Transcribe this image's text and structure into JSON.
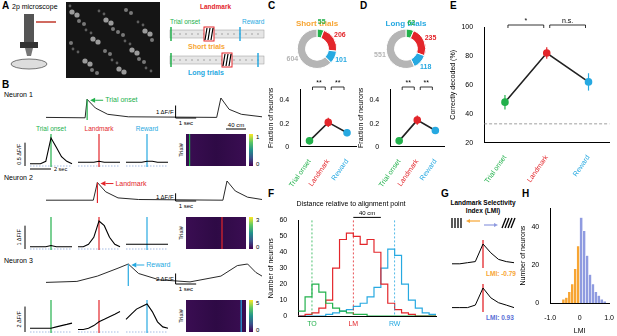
{
  "letters": [
    "A",
    "B",
    "C",
    "D",
    "E",
    "F",
    "G",
    "H"
  ],
  "panel_A": {
    "microscope": "2p microscope",
    "events": [
      "Trial onset",
      "Landmark",
      "Reward"
    ],
    "trial_types": [
      "Short trials",
      "Long trials"
    ]
  },
  "panel_B": {
    "aligned_labels": [
      "Trial onset",
      "Landmark",
      "Reward"
    ],
    "aligned_x": [
      -2,
      -1.5,
      -1,
      -0.5,
      0,
      0.5,
      1,
      1.5,
      2
    ],
    "aligned_time": {
      "value": 2,
      "label": "2 sec"
    },
    "trial_axis": "Trial#",
    "distance": "40 cm",
    "neurons": [
      {
        "name": "Neuron 1",
        "event": "Trial onset",
        "trace": [
          [
            0,
            0.05
          ],
          [
            1.9,
            0.02
          ],
          [
            2.0,
            1.5
          ],
          [
            2.4,
            0.8
          ],
          [
            3,
            0.3
          ],
          [
            4,
            0.1
          ],
          [
            8.3,
            0.05
          ],
          [
            8.5,
            1.6
          ],
          [
            8.9,
            0.7
          ],
          [
            9.5,
            0.3
          ],
          [
            10.5,
            0.1
          ]
        ],
        "scale_y": {
          "value": 1,
          "label": "1 ΔF/F"
        },
        "scale_x": {
          "value": 1,
          "label": "1 sec"
        },
        "aligned_means": [
          [
            0.05,
            0.05,
            0.05,
            0.1,
            0.6,
            0.4,
            0.2,
            0.1,
            0.05
          ],
          [
            0.08,
            0.08,
            0.08,
            0.08,
            0.1,
            0.08,
            0.08,
            0.08,
            0.08
          ],
          [
            0.08,
            0.08,
            0.08,
            0.08,
            0.1,
            0.1,
            0.08,
            0.08,
            0.08
          ]
        ],
        "aligned_scale": {
          "value": 0.5,
          "label": "0.5 ΔF/F"
        },
        "colorbar_ticks": [
          0,
          1
        ]
      },
      {
        "name": "Neuron 2",
        "event": "Landmark",
        "trace": [
          [
            0,
            0.1
          ],
          [
            2.3,
            0.1
          ],
          [
            2.5,
            2.4
          ],
          [
            2.9,
            1.2
          ],
          [
            3.5,
            0.4
          ],
          [
            4.5,
            0.2
          ],
          [
            8.6,
            0.1
          ],
          [
            8.8,
            2.6
          ],
          [
            9.2,
            1.3
          ],
          [
            9.8,
            0.5
          ],
          [
            10.5,
            0.2
          ]
        ],
        "scale_y": {
          "value": 1,
          "label": "1 ΔF/F"
        },
        "scale_x": {
          "value": 1,
          "label": "1 sec"
        },
        "aligned_means": [
          [
            0.1,
            0.1,
            0.1,
            0.1,
            0.15,
            0.1,
            0.1,
            0.1,
            0.1
          ],
          [
            0.1,
            0.1,
            0.2,
            0.5,
            1.2,
            1.0,
            0.5,
            0.2,
            0.1
          ],
          [
            0.2,
            0.2,
            0.2,
            0.2,
            0.2,
            0.2,
            0.2,
            0.2,
            0.2
          ]
        ],
        "aligned_scale": {
          "value": 1,
          "label": "1 ΔF/F"
        },
        "colorbar_ticks": [
          0,
          3
        ]
      },
      {
        "name": "Neuron 3",
        "event": "Reward",
        "trace": [
          [
            0,
            0.3
          ],
          [
            1.5,
            0.5
          ],
          [
            2.5,
            1.5
          ],
          [
            3.5,
            3.0
          ],
          [
            4.0,
            3.8
          ],
          [
            4.5,
            2.0
          ],
          [
            5.5,
            0.8
          ],
          [
            7,
            0.4
          ],
          [
            8.5,
            1.5
          ],
          [
            9.3,
            3.5
          ],
          [
            9.8,
            3.8
          ],
          [
            10.2,
            2.2
          ],
          [
            10.5,
            1.5
          ]
        ],
        "scale_y": {
          "value": 2,
          "label": "2 ΔF/F"
        },
        "scale_x": {
          "value": 1,
          "label": "1 sec"
        },
        "aligned_means": [
          [
            0.3,
            0.3,
            0.3,
            0.3,
            0.3,
            0.4,
            0.5,
            0.6,
            0.7
          ],
          [
            0.2,
            0.2,
            0.3,
            0.5,
            0.8,
            1.0,
            1.2,
            1.4,
            1.6
          ],
          [
            1.0,
            1.4,
            1.8,
            2.0,
            2.2,
            1.6,
            0.8,
            0.4,
            0.3
          ]
        ],
        "aligned_scale": {
          "value": 2,
          "label": "2 ΔF/F"
        },
        "colorbar_ticks": [
          0,
          5
        ]
      }
    ]
  },
  "panel_G": {
    "title": "Landmark Selectivity Index (LMI)",
    "examples": [
      {
        "label": "LMI: -0.79",
        "value": -0.79,
        "trace": [
          0.1,
          0.1,
          0.15,
          0.2,
          1.0,
          0.6,
          0.3,
          0.2,
          0.15
        ]
      },
      {
        "label": "LMI: 0.93",
        "value": 0.93,
        "trace": [
          0.1,
          0.1,
          0.1,
          0.2,
          0.9,
          0.5,
          0.3,
          0.2,
          0.1
        ]
      }
    ]
  },
  "chart_data": [
    {
      "type": "doughnut",
      "title": "Short trials",
      "values": [
        55,
        206,
        101,
        604
      ],
      "colors": [
        "#22b14c",
        "#e3262b",
        "#27a9e1",
        "#b5b5b5"
      ],
      "data_labels": true
    },
    {
      "type": "line",
      "categories": [
        "Trial onset",
        "Landmark",
        "Reward"
      ],
      "values": [
        0.05,
        0.21,
        0.12
      ],
      "errors": [
        0.02,
        0.04,
        0.03
      ],
      "color": "#222222",
      "colors": [
        "#22b14c",
        "#e3262b",
        "#27a9e1"
      ],
      "marker": "circle",
      "y_label": "Fraction of neurons",
      "ylim": [
        0,
        0.5
      ],
      "yticks": [
        0,
        0.2,
        0.4
      ],
      "annotations": [
        {
          "between": [
            "Trial onset",
            "Landmark"
          ],
          "text": "**"
        },
        {
          "between": [
            "Landmark",
            "Reward"
          ],
          "text": "**"
        }
      ]
    },
    {
      "type": "doughnut",
      "title": "Long trials",
      "values": [
        62,
        235,
        118,
        551
      ],
      "colors": [
        "#22b14c",
        "#e3262b",
        "#27a9e1",
        "#b5b5b5"
      ],
      "data_labels": true
    },
    {
      "type": "line",
      "categories": [
        "Trial onset",
        "Landmark",
        "Reward"
      ],
      "values": [
        0.05,
        0.23,
        0.14
      ],
      "errors": [
        0.02,
        0.04,
        0.03
      ],
      "color": "#222222",
      "colors": [
        "#22b14c",
        "#e3262b",
        "#27a9e1"
      ],
      "marker": "circle",
      "y_label": "Fraction of neurons",
      "ylim": [
        0,
        0.5
      ],
      "yticks": [
        0,
        0.2,
        0.4
      ],
      "annotations": [
        {
          "between": [
            "Trial onset",
            "Landmark"
          ],
          "text": "**"
        },
        {
          "between": [
            "Landmark",
            "Reward"
          ],
          "text": "**"
        }
      ]
    },
    {
      "type": "line",
      "categories": [
        "Trial onset",
        "Landmark",
        "Reward"
      ],
      "values": [
        48,
        82,
        62
      ],
      "errors": [
        5,
        4,
        6
      ],
      "color": "#222222",
      "colors": [
        "#22b14c",
        "#e3262b",
        "#27a9e1"
      ],
      "marker": "circle",
      "y_label": "Correctly decoded (%)",
      "ylim": [
        20,
        100
      ],
      "yticks": [
        20,
        40,
        60,
        80,
        100
      ],
      "reference_line": 33,
      "annotations": [
        {
          "between": [
            "Trial onset",
            "Landmark"
          ],
          "text": "*"
        },
        {
          "between": [
            "Landmark",
            "Reward"
          ],
          "text": "n.s."
        }
      ]
    },
    {
      "type": "histogram",
      "title": "Distance relative to alignment point",
      "y_label": "Number of neurons",
      "bins": [
        -80,
        -70,
        -60,
        -50,
        -40,
        -30,
        -20,
        -10,
        0,
        10,
        20,
        30,
        40,
        50,
        60,
        70,
        80,
        90,
        100,
        110,
        120
      ],
      "series": [
        {
          "name": "TO",
          "color": "#22b14c",
          "alignment": -60,
          "values": [
            3,
            12,
            20,
            15,
            8,
            5,
            3,
            2,
            1,
            1,
            0,
            0,
            0,
            0,
            0,
            0,
            0,
            0,
            0,
            0
          ]
        },
        {
          "name": "LM",
          "color": "#e3262b",
          "alignment": 0,
          "values": [
            0,
            1,
            2,
            5,
            10,
            30,
            48,
            52,
            50,
            45,
            48,
            40,
            20,
            8,
            4,
            2,
            1,
            0,
            0,
            0
          ]
        },
        {
          "name": "RW",
          "color": "#27a9e1",
          "alignment": 60,
          "values": [
            0,
            0,
            0,
            0,
            1,
            2,
            3,
            4,
            6,
            8,
            12,
            18,
            30,
            42,
            38,
            20,
            10,
            5,
            2,
            1
          ]
        }
      ],
      "scale_bar": {
        "value": 40,
        "label": "40 cm"
      },
      "ylim": [
        0,
        60
      ],
      "yticks": [
        0,
        10,
        20,
        30,
        40,
        50,
        60
      ],
      "tick_labels": "y"
    },
    {
      "type": "histogram",
      "x_label": "LMI",
      "y_label": "Number of neurons",
      "bins": [
        -0.6,
        -0.5,
        -0.4,
        -0.3,
        -0.2,
        -0.1,
        0,
        0.1,
        0.2,
        0.3,
        0.4,
        0.5,
        0.6,
        0.7,
        0.8,
        0.9
      ],
      "values": [
        2,
        3,
        6,
        10,
        18,
        30,
        45,
        38,
        25,
        15,
        10,
        6,
        4,
        2,
        1
      ],
      "colors": [
        "#f7a533",
        "#f7a533",
        "#f7a533",
        "#f7a533",
        "#f7a533",
        "#f7a533",
        "#8f9be0",
        "#8f9be0",
        "#8f9be0",
        "#8f9be0",
        "#8f9be0",
        "#8f9be0",
        "#8f9be0",
        "#8f9be0",
        "#8f9be0"
      ],
      "xlim": [
        -1,
        1
      ],
      "xticks": [
        {
          "value": -1,
          "label": "-1.0"
        },
        0,
        {
          "value": 1,
          "label": "1.0"
        }
      ],
      "ylim": [
        0,
        50
      ],
      "yticks": [
        0,
        20,
        40
      ]
    }
  ]
}
